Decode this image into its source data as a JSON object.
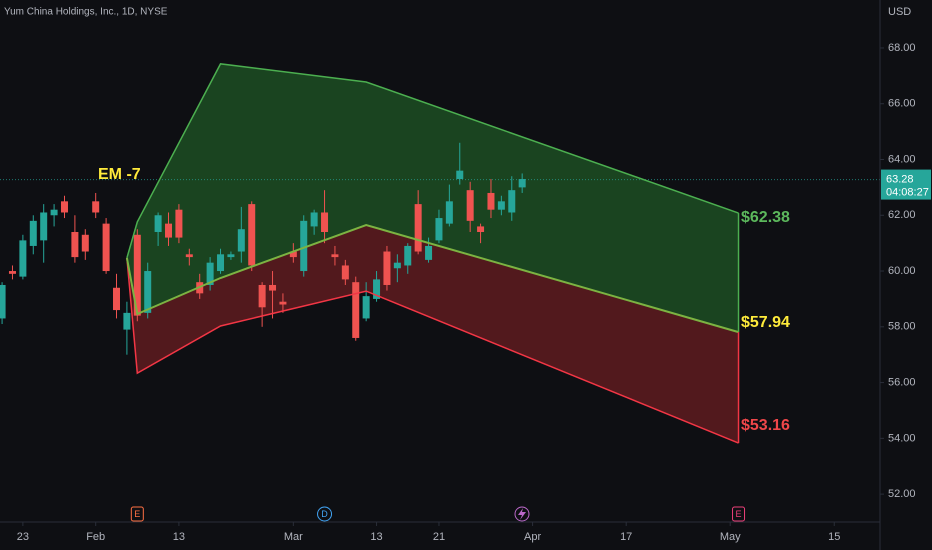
{
  "chart_data": {
    "type": "candlestick",
    "title": "Yum China Holdings, Inc., 1D, NYSE",
    "currency": "USD",
    "ylim": [
      51,
      69.72
    ],
    "yticks": [
      {
        "value": 52,
        "label": "52.00"
      },
      {
        "value": 54,
        "label": "54.00"
      },
      {
        "value": 56,
        "label": "56.00"
      },
      {
        "value": 58,
        "label": "58.00"
      },
      {
        "value": 60,
        "label": "60.00"
      },
      {
        "value": 62,
        "label": "62.00"
      },
      {
        "value": 64,
        "label": "64.00"
      },
      {
        "value": 66,
        "label": "66.00"
      },
      {
        "value": 68,
        "label": "68.00"
      }
    ],
    "xlim": [
      -0.2,
      84.4
    ],
    "xticks": [
      {
        "value": 2,
        "label": "23"
      },
      {
        "value": 9,
        "label": "Feb"
      },
      {
        "value": 17,
        "label": "13"
      },
      {
        "value": 28,
        "label": "Mar"
      },
      {
        "value": 36,
        "label": "13"
      },
      {
        "value": 42,
        "label": "21"
      },
      {
        "value": 51,
        "label": "Apr"
      },
      {
        "value": 60,
        "label": "17"
      },
      {
        "value": 70,
        "label": "May"
      },
      {
        "value": 80,
        "label": "15"
      }
    ],
    "up_color": "#26a69a",
    "down_color": "#ef5350",
    "candles": {
      "open": [
        58.3,
        60.0,
        59.8,
        60.9,
        61.1,
        62.0,
        62.5,
        61.4,
        61.3,
        62.5,
        61.7,
        59.4,
        57.9,
        61.3,
        58.5,
        61.4,
        61.7,
        62.2,
        60.6,
        59.6,
        59.5,
        60.0,
        60.5,
        60.7,
        62.4,
        59.5,
        59.5,
        58.9,
        60.7,
        60.0,
        61.6,
        62.1,
        60.6,
        60.2,
        59.6,
        58.3,
        59.0,
        60.7,
        60.1,
        60.2,
        62.4,
        60.4,
        61.1,
        61.7,
        63.3,
        62.9,
        61.6,
        62.8,
        62.2,
        62.1,
        63.0
      ],
      "high": [
        59.6,
        60.2,
        61.3,
        62.0,
        62.4,
        62.4,
        62.7,
        62.0,
        61.5,
        62.8,
        61.9,
        59.9,
        58.9,
        61.5,
        60.3,
        62.1,
        62.1,
        62.4,
        60.8,
        59.9,
        60.5,
        60.8,
        60.7,
        62.3,
        62.5,
        59.6,
        60.0,
        59.2,
        61.0,
        62.0,
        62.2,
        62.9,
        60.9,
        60.4,
        59.8,
        59.6,
        60.0,
        60.9,
        60.6,
        61.0,
        62.9,
        61.2,
        62.2,
        63.1,
        64.6,
        63.2,
        61.7,
        63.3,
        62.7,
        63.4,
        63.5
      ],
      "low": [
        58.1,
        59.7,
        59.7,
        60.6,
        60.3,
        61.6,
        61.9,
        60.3,
        60.4,
        61.9,
        59.9,
        58.3,
        57.0,
        58.2,
        58.3,
        60.9,
        60.9,
        61.0,
        60.2,
        59.0,
        59.3,
        59.9,
        60.4,
        60.3,
        60.0,
        58.0,
        58.3,
        58.5,
        60.3,
        59.8,
        61.3,
        61.0,
        60.2,
        59.5,
        57.5,
        58.2,
        58.9,
        59.3,
        59.6,
        59.9,
        60.6,
        60.3,
        61.0,
        61.6,
        63.1,
        61.4,
        61.0,
        61.9,
        62.0,
        61.8,
        62.8
      ],
      "close": [
        59.5,
        59.9,
        61.1,
        61.8,
        62.1,
        62.2,
        62.1,
        60.5,
        60.7,
        62.1,
        60.0,
        58.6,
        58.5,
        58.4,
        60.0,
        62.0,
        61.2,
        61.2,
        60.5,
        59.2,
        60.3,
        60.6,
        60.6,
        61.5,
        60.2,
        58.7,
        59.3,
        58.8,
        60.5,
        61.8,
        62.1,
        61.4,
        60.5,
        59.7,
        57.6,
        59.1,
        59.7,
        59.5,
        60.3,
        60.9,
        60.7,
        60.9,
        61.9,
        62.5,
        63.6,
        61.8,
        61.4,
        62.2,
        62.5,
        62.9,
        63.3
      ]
    },
    "last_price": 63.28,
    "countdown": "04:08:27",
    "bands": {
      "x": [
        12,
        13,
        21,
        35,
        70.8
      ],
      "upper": [
        60.47,
        61.76,
        67.43,
        66.78,
        62.08
      ],
      "middle": [
        60.47,
        58.46,
        59.75,
        61.65,
        57.81
      ],
      "lower": [
        60.47,
        56.34,
        58.03,
        59.28,
        53.83
      ]
    },
    "annotations": [
      "EM -7",
      "$62.38",
      "$57.94",
      "$53.16"
    ],
    "events": [
      {
        "x": 13,
        "label": "E"
      },
      {
        "x": 31,
        "label": "D"
      },
      {
        "x": 70.8,
        "label": "E"
      }
    ]
  }
}
